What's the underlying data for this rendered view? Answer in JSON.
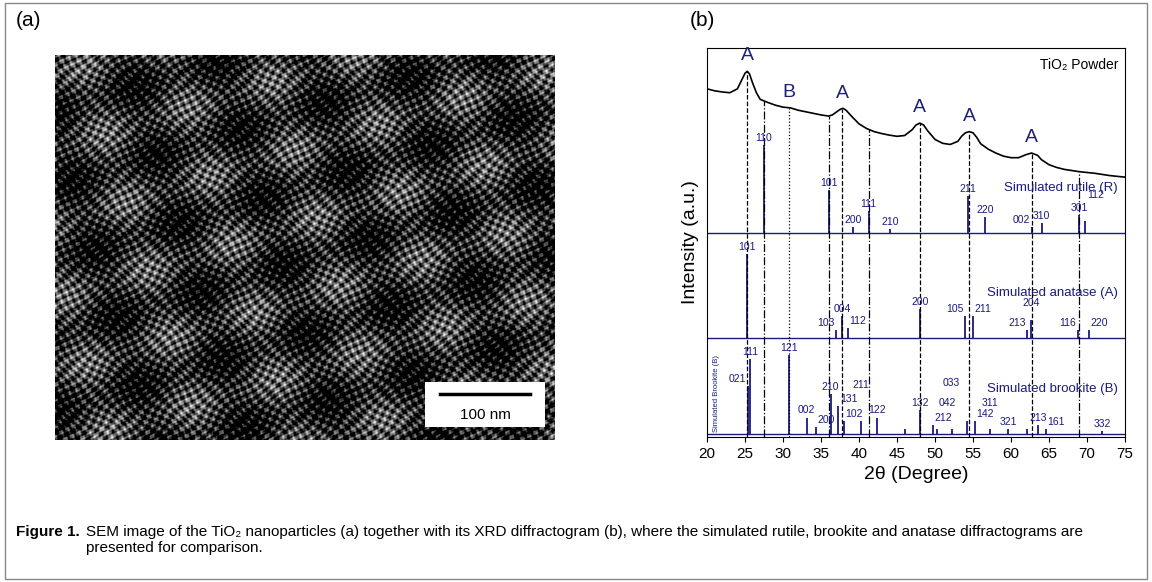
{
  "panel_a": {
    "label": "(a)",
    "scale_bar": "100 nm"
  },
  "chart_data": {
    "type": "line",
    "label": "(b)",
    "xlabel": "2θ (Degree)",
    "ylabel": "Intensity (a.u.)",
    "xlim": [
      20,
      75
    ],
    "xticks": [
      20,
      25,
      30,
      35,
      40,
      45,
      50,
      55,
      60,
      65,
      70,
      75
    ],
    "ylim": [
      0,
      100
    ],
    "yticks": [],
    "tick_labels": "x",
    "series": [
      {
        "name": "TiO₂ Powder",
        "type": "line",
        "color": "#000000",
        "x": [
          20,
          21,
          22,
          23,
          24,
          24.5,
          25,
          25.3,
          25.6,
          26,
          26.5,
          27,
          28,
          29,
          30,
          31,
          32,
          33,
          34,
          35,
          36,
          36.5,
          37,
          37.5,
          37.9,
          38.3,
          39,
          40,
          41,
          42,
          43,
          44,
          45,
          46,
          47,
          47.5,
          48,
          48.5,
          49,
          50,
          51,
          52,
          53,
          53.5,
          54,
          54.5,
          55,
          55.5,
          56,
          57,
          58,
          59,
          60,
          61,
          62,
          62.7,
          63.5,
          64,
          65,
          66,
          67,
          68,
          69,
          70,
          71,
          72,
          73,
          74,
          75
        ],
        "values": [
          89.5,
          89.0,
          88.7,
          88.5,
          89.5,
          91.5,
          93.5,
          94.0,
          93.3,
          91.0,
          88.5,
          86.8,
          86.0,
          85.3,
          84.8,
          84.6,
          84.0,
          83.6,
          83.2,
          82.8,
          82.5,
          82.8,
          83.5,
          84.2,
          84.5,
          84.0,
          82.5,
          80.5,
          79.3,
          78.5,
          78.0,
          77.6,
          77.3,
          77.5,
          79.0,
          80.2,
          80.7,
          80.2,
          78.8,
          76.5,
          75.5,
          75.2,
          76.0,
          77.3,
          78.2,
          78.5,
          78.2,
          77.0,
          75.4,
          74.0,
          73.0,
          72.2,
          71.8,
          71.8,
          72.6,
          73.0,
          72.4,
          71.3,
          70.0,
          69.3,
          68.8,
          68.5,
          68.2,
          68.0,
          67.8,
          67.5,
          67.2,
          67.0,
          66.8
        ]
      },
      {
        "name": "Simulated rutile (R)",
        "type": "stick",
        "color": "#1a1a80",
        "baseline": 52.5,
        "x": [
          27.45,
          36.09,
          39.19,
          41.25,
          44.05,
          54.32,
          56.64,
          62.74,
          64.04,
          69.01,
          69.79
        ],
        "values": [
          75,
          63.5,
          54,
          58,
          53.5,
          62,
          56.5,
          54,
          55,
          57,
          55.5
        ],
        "peak_labels": [
          "110",
          "101",
          "200",
          "111",
          "210",
          "211",
          "220",
          "002",
          "310",
          "301",
          "112"
        ]
      },
      {
        "name": "Simulated anatase (A)",
        "type": "stick",
        "color": "#1a1a80",
        "baseline": 25.5,
        "x": [
          25.28,
          36.95,
          37.8,
          38.57,
          48.05,
          53.89,
          55.06,
          62.12,
          62.69,
          68.76,
          70.31
        ],
        "values": [
          47,
          27.5,
          31,
          28,
          33,
          31,
          31,
          27.5,
          30,
          27.5,
          27.5
        ],
        "peak_labels": [
          "101",
          "103",
          "004",
          "112",
          "200",
          "105",
          "211",
          "213",
          "204",
          "116",
          "220"
        ]
      },
      {
        "name": "Simulated brookite (B)",
        "type": "stick",
        "color": "#1a1a80",
        "baseline": 0.8,
        "side_label": "Simulated Brookite (B)",
        "x": [
          25.34,
          25.69,
          30.81,
          33.1,
          34.4,
          36.25,
          37.3,
          38.0,
          40.2,
          42.34,
          46.07,
          48.0,
          49.7,
          50.3,
          52.2,
          54.2,
          55.2,
          57.2,
          59.6,
          62.1,
          63.6,
          64.6,
          72.0
        ],
        "values": [
          13,
          20,
          21,
          5,
          2.5,
          11,
          8,
          4,
          4,
          5,
          2,
          7,
          3,
          2,
          2,
          4,
          4,
          2,
          2,
          2,
          3,
          2,
          1.5
        ],
        "peak_labels": [
          "021",
          "111",
          "121",
          "002",
          "200",
          "210",
          "131",
          "102",
          "211",
          "122",
          null,
          "132",
          "212",
          "042",
          "033",
          null,
          "142",
          "311",
          "321",
          null,
          "213",
          "161",
          "332"
        ]
      }
    ],
    "phase_labels": [
      {
        "x": 25.3,
        "label": "A"
      },
      {
        "x": 30.81,
        "label": "B"
      },
      {
        "x": 37.8,
        "label": "A"
      },
      {
        "x": 48.0,
        "label": "A"
      },
      {
        "x": 54.5,
        "label": "A"
      },
      {
        "x": 62.7,
        "label": "A"
      }
    ],
    "reference_lines": [
      {
        "line_style": "dashed",
        "x": [
          25.3,
          37.8,
          48.0,
          54.5,
          62.7
        ]
      },
      {
        "line_style": "dashdot",
        "x": [
          27.45,
          36.09,
          41.25,
          69.01
        ]
      },
      {
        "line_style": "dotted",
        "x": [
          30.81
        ]
      }
    ]
  },
  "caption": {
    "label": "Figure 1.",
    "text": "SEM image of the TiO₂ nanoparticles (a) together with its XRD diffractogram (b), where the simulated rutile, brookite and anatase diffractograms are presented for comparison."
  }
}
